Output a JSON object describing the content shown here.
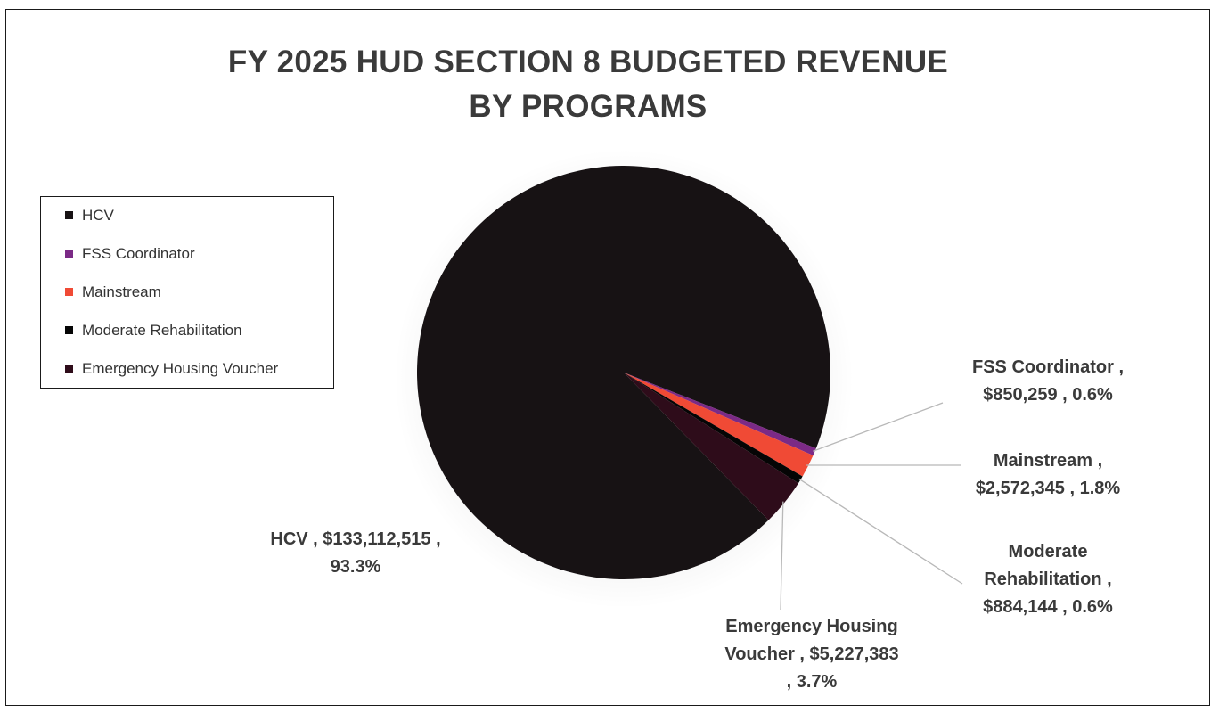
{
  "chart_data": {
    "type": "pie",
    "title_line1": "FY 2025 HUD SECTION 8 BUDGETED REVENUE",
    "title_line2": "BY PROGRAMS",
    "slices": [
      {
        "name": "HCV",
        "value": 133112515,
        "percent": 93.3,
        "color": "#171214",
        "label_lines": [
          "HCV ,  $133,112,515 ,",
          "93.3%"
        ]
      },
      {
        "name": "FSS Coordinator",
        "value": 850259,
        "percent": 0.6,
        "color": "#7b2a86",
        "label_lines": [
          "FSS Coordinator ,",
          "$850,259 , 0.6%"
        ]
      },
      {
        "name": "Mainstream",
        "value": 2572345,
        "percent": 1.8,
        "color": "#f04a35",
        "label_lines": [
          "Mainstream ,",
          "$2,572,345 , 1.8%"
        ]
      },
      {
        "name": "Moderate Rehabilitation",
        "value": 884144,
        "percent": 0.6,
        "color": "#050505",
        "label_lines": [
          "Moderate",
          "Rehabilitation ,",
          "$884,144 , 0.6%"
        ]
      },
      {
        "name": "Emergency Housing Voucher",
        "value": 5227383,
        "percent": 3.7,
        "color": "#2e0c1a",
        "label_lines": [
          "Emergency Housing",
          "Voucher ,  $5,227,383",
          ", 3.7%"
        ]
      }
    ],
    "legend_position": "left"
  },
  "colors": {
    "leader_line": "#b8b8b8"
  }
}
